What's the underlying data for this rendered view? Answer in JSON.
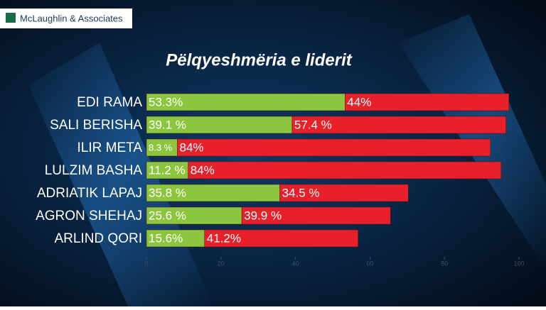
{
  "logo": "McLaughlin & Associates",
  "chart_data": {
    "type": "stacked-barh",
    "title": "Pëlqyeshmëria e liderit",
    "categories": [
      "EDI RAMA",
      "SALI BERISHA",
      "ILIR META",
      "LULZIM BASHA",
      "ADRIATIK LAPAJ",
      "AGRON SHEHAJ",
      "ARLIND QORI"
    ],
    "series": [
      {
        "color": "#8cc63f",
        "values": [
          53.3,
          39.1,
          8.3,
          11.2,
          35.8,
          25.6,
          15.6
        ],
        "value_labels": [
          "53.3%",
          "39.1 %",
          "8.3 %",
          "11.2 %",
          "35.8 %",
          "25.6 %",
          "15.6%"
        ]
      },
      {
        "color": "#e8202a",
        "values": [
          44,
          57.4,
          84,
          84,
          34.5,
          39.9,
          41.2
        ],
        "value_labels": [
          "44%",
          "57.4 %",
          "84%",
          "84%",
          "34.5 %",
          "39.9 %",
          "41.2%"
        ]
      }
    ],
    "xlim": [
      0,
      100
    ],
    "xticks": [
      0,
      20,
      40,
      60,
      80,
      100
    ]
  }
}
